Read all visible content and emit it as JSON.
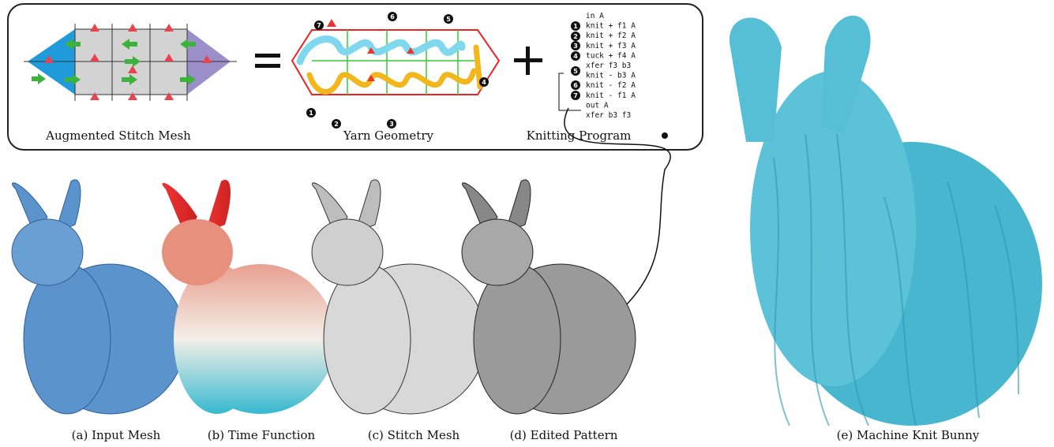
{
  "inset": {
    "labels": [
      "Augmented Stitch Mesh",
      "Yarn Geometry",
      "Knitting Program"
    ],
    "markers": [
      "1",
      "2",
      "3",
      "4",
      "5",
      "6",
      "7"
    ],
    "program": [
      "in A",
      "knit + f1 A",
      "knit + f2 A",
      "knit + f3 A",
      "tuck + f4 A",
      "xfer f3 b3",
      "knit - b3 A",
      "knit - f2 A",
      "knit - f1 A",
      "out A",
      "xfer b3 f3"
    ]
  },
  "captions": [
    "(a) Input Mesh",
    "(b) Time Function",
    "(c) Stitch Mesh",
    "(d) Edited Pattern",
    "(e) Machine Knit Bunny"
  ]
}
